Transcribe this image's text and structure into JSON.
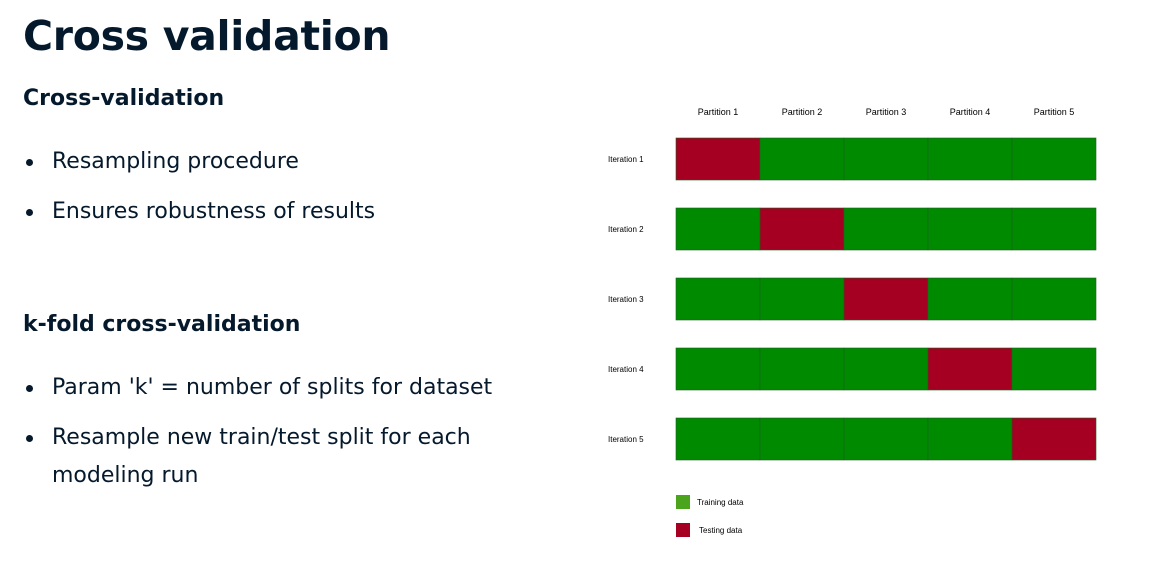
{
  "slide": {
    "title": "Cross validation"
  },
  "sections": [
    {
      "heading": "Cross-validation",
      "bullets": [
        "Resampling procedure",
        "Ensures robustness of results"
      ]
    },
    {
      "heading": "k-fold cross-validation",
      "bullets": [
        "Param 'k' = number of splits for dataset",
        "Resample new train/test split for each modeling run"
      ]
    }
  ],
  "diagram": {
    "partitions": [
      "Partition 1",
      "Partition 2",
      "Partition 3",
      "Partition 4",
      "Partition 5"
    ],
    "iterations": [
      "Iteration 1",
      "Iteration 2",
      "Iteration 3",
      "Iteration 4",
      "Iteration 5"
    ],
    "test_partition_index_per_iteration": [
      0,
      1,
      2,
      3,
      4
    ],
    "legend": {
      "training_label": "Training data",
      "testing_label": "Testing data"
    },
    "colors": {
      "training": "#008a00",
      "testing": "#a50021",
      "legend_training": "#4aa51c",
      "legend_testing": "#a50021",
      "cell_border": "#1f5f1f"
    }
  }
}
